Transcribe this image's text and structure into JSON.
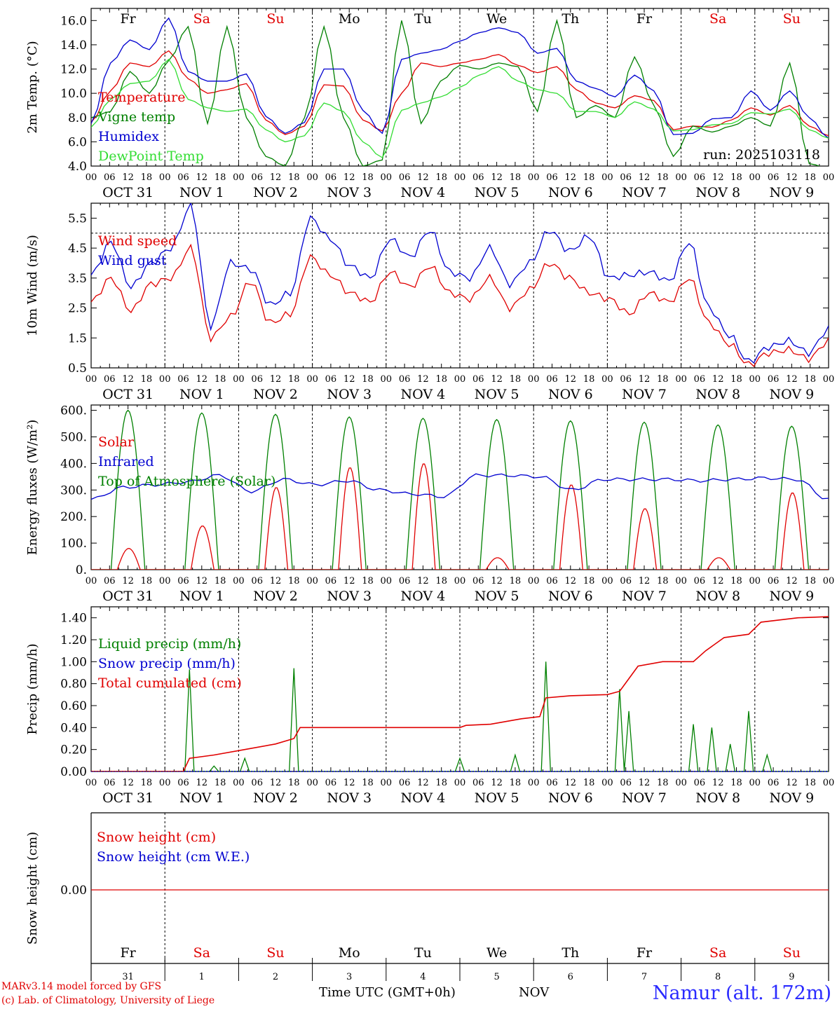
{
  "run_label": "run: 2025103118",
  "hour_ticks": [
    "00",
    "06",
    "12",
    "18"
  ],
  "date_labels": [
    "OCT 31",
    "NOV  1",
    "NOV  2",
    "NOV  3",
    "NOV  4",
    "NOV  5",
    "NOV  6",
    "NOV  7",
    "NOV  8",
    "NOV  9"
  ],
  "weekdays": [
    {
      "label": "Fr",
      "weekend": false
    },
    {
      "label": "Sa",
      "weekend": true
    },
    {
      "label": "Su",
      "weekend": true
    },
    {
      "label": "Mo",
      "weekend": false
    },
    {
      "label": "Tu",
      "weekend": false
    },
    {
      "label": "We",
      "weekend": false
    },
    {
      "label": "Th",
      "weekend": false
    },
    {
      "label": "Fr",
      "weekend": false
    },
    {
      "label": "Sa",
      "weekend": true
    },
    {
      "label": "Su",
      "weekend": true
    }
  ],
  "day_numbers": [
    "31",
    "1",
    "2",
    "3",
    "4",
    "5",
    "6",
    "7",
    "8",
    "9"
  ],
  "colors": {
    "red": "#e00000",
    "blue": "#0000d0",
    "green": "#008000",
    "lightgreen": "#33dd33",
    "weekend": "#e00000"
  },
  "chart_data": [
    {
      "type": "line",
      "ylabel": "2m Temp. (°C)",
      "ylim": [
        4,
        17
      ],
      "yticks": [
        "4.0",
        "6.0",
        "8.0",
        "10.0",
        "12.0",
        "14.0",
        "16.0"
      ],
      "x_hours_step": 12,
      "series": [
        {
          "name": "Temperature",
          "color": "red",
          "values": [
            7.6,
            10.2,
            12.5,
            12.2,
            13.5,
            11.2,
            10.0,
            10.3,
            10.8,
            7.8,
            6.6,
            7.3,
            10.7,
            10.6,
            7.8,
            6.9,
            10.0,
            12.5,
            12.2,
            12.5,
            12.8,
            13.2,
            12.3,
            11.7,
            12.2,
            10.3,
            9.2,
            8.8,
            9.8,
            9.4,
            7.0,
            7.3,
            7.2,
            7.8,
            8.8,
            8.2,
            9.0,
            7.3,
            6.5
          ]
        },
        {
          "name": "Vigne temp",
          "color": "green",
          "values": [
            8.0,
            8.5,
            11.8,
            10.0,
            12.7,
            15.5,
            7.5,
            15.5,
            8.0,
            4.8,
            4.0,
            8.0,
            15.5,
            8.0,
            4.0,
            4.5,
            16.0,
            7.5,
            11.0,
            12.3,
            12.0,
            12.5,
            12.2,
            8.5,
            16.0,
            8.0,
            9.0,
            8.0,
            13.0,
            9.0,
            4.8,
            7.3,
            6.8,
            7.3,
            8.0,
            7.3,
            12.5,
            4.2,
            3.8
          ]
        },
        {
          "name": "Humidex",
          "color": "blue",
          "values": [
            7.5,
            12.5,
            14.4,
            13.6,
            16.2,
            11.8,
            11.0,
            11.0,
            11.6,
            8.1,
            6.7,
            7.6,
            12.0,
            12.0,
            8.6,
            6.7,
            12.8,
            13.3,
            13.6,
            14.3,
            15.0,
            15.4,
            15.0,
            13.3,
            13.7,
            11.0,
            10.4,
            9.7,
            11.5,
            10.2,
            6.6,
            6.7,
            7.9,
            8.0,
            10.2,
            8.6,
            10.2,
            8.0,
            6.3
          ]
        },
        {
          "name": "DewPoint Temp",
          "color": "lightgreen",
          "values": [
            7.2,
            9.5,
            10.8,
            11.0,
            12.8,
            9.5,
            8.8,
            8.5,
            8.7,
            7.0,
            6.0,
            6.5,
            9.2,
            8.5,
            6.0,
            4.7,
            8.6,
            9.2,
            9.7,
            10.5,
            11.5,
            12.2,
            11.0,
            10.3,
            10.0,
            8.5,
            8.5,
            8.0,
            9.3,
            8.7,
            6.9,
            7.0,
            7.4,
            7.5,
            8.4,
            8.3,
            8.7,
            7.0,
            6.3
          ]
        }
      ]
    },
    {
      "type": "line",
      "ylabel": "10m Wind (m/s)",
      "ylim": [
        0.5,
        6.0
      ],
      "yticks": [
        "0.5",
        "1.5",
        "2.5",
        "3.5",
        "4.5",
        "5.5"
      ],
      "reference_line": 5.0,
      "x_hours_step": 12,
      "series": [
        {
          "name": "Wind speed",
          "color": "red",
          "values": [
            2.7,
            3.5,
            2.4,
            3.3,
            3.5,
            4.5,
            1.5,
            2.2,
            3.4,
            2.0,
            2.3,
            4.2,
            3.6,
            3.0,
            2.7,
            3.7,
            3.2,
            3.9,
            3.0,
            2.8,
            3.5,
            2.5,
            3.1,
            4.0,
            3.5,
            3.0,
            2.8,
            2.3,
            3.0,
            2.7,
            3.5,
            2.0,
            1.3,
            0.6,
            1.0,
            1.1,
            0.8,
            1.4
          ]
        },
        {
          "name": "Wind gust",
          "color": "blue",
          "values": [
            3.6,
            4.7,
            3.2,
            4.0,
            4.5,
            5.9,
            1.9,
            4.0,
            3.8,
            2.6,
            3.0,
            5.5,
            4.8,
            3.9,
            3.5,
            4.8,
            4.2,
            5.1,
            3.7,
            3.5,
            4.5,
            3.3,
            4.0,
            5.1,
            4.4,
            4.9,
            3.5,
            3.6,
            3.7,
            3.4,
            4.7,
            2.5,
            1.6,
            0.7,
            1.2,
            1.4,
            1.0,
            1.8
          ]
        }
      ]
    },
    {
      "type": "line",
      "ylabel": "Energy fluxes (W/m²)",
      "ylim": [
        0,
        620
      ],
      "yticks": [
        "0.",
        "100.",
        "200.",
        "300.",
        "400.",
        "500.",
        "600."
      ],
      "series": [
        {
          "name": "Solar",
          "color": "red",
          "day_peaks": [
            80,
            165,
            310,
            385,
            400,
            45,
            320,
            230,
            45,
            290
          ]
        },
        {
          "name": "Infrared",
          "color": "blue",
          "values": [
            265,
            310,
            320,
            330,
            355,
            295,
            340,
            320,
            335,
            300,
            285,
            275,
            355,
            355,
            350,
            300,
            340,
            340,
            340,
            335,
            340,
            345,
            340,
            265
          ]
        },
        {
          "name": "Top of Atmosphere (Solar)",
          "color": "green",
          "day_peaks": [
            600,
            590,
            585,
            575,
            570,
            565,
            560,
            555,
            545,
            540
          ]
        }
      ]
    },
    {
      "type": "line",
      "ylabel": "Precip (mm/h)",
      "ylim": [
        0,
        1.5
      ],
      "yticks": [
        "0.00",
        "0.20",
        "0.40",
        "0.60",
        "0.80",
        "1.00",
        "1.20",
        "1.40"
      ],
      "series": [
        {
          "name": "Liquid precip (mm/h)",
          "color": "green",
          "spikes": [
            [
              32,
              0.93
            ],
            [
              40,
              0.05
            ],
            [
              50,
              0.12
            ],
            [
              66,
              0.94
            ],
            [
              120,
              0.12
            ],
            [
              138,
              0.15
            ],
            [
              148,
              1.0
            ],
            [
              172,
              0.75
            ],
            [
              175,
              0.55
            ],
            [
              196,
              0.43
            ],
            [
              202,
              0.4
            ],
            [
              208,
              0.25
            ],
            [
              214,
              0.55
            ],
            [
              220,
              0.15
            ]
          ]
        },
        {
          "name": "Snow precip (mm/h)",
          "color": "blue",
          "values": [
            0
          ]
        },
        {
          "name": "Total cumulated (cm)",
          "color": "red",
          "points": [
            [
              0,
              0
            ],
            [
              30,
              0
            ],
            [
              32,
              0.12
            ],
            [
              40,
              0.15
            ],
            [
              50,
              0.2
            ],
            [
              60,
              0.25
            ],
            [
              66,
              0.3
            ],
            [
              68,
              0.4
            ],
            [
              120,
              0.4
            ],
            [
              122,
              0.42
            ],
            [
              130,
              0.43
            ],
            [
              140,
              0.48
            ],
            [
              146,
              0.5
            ],
            [
              148,
              0.67
            ],
            [
              156,
              0.69
            ],
            [
              168,
              0.7
            ],
            [
              172,
              0.73
            ],
            [
              178,
              0.96
            ],
            [
              186,
              1.0
            ],
            [
              196,
              1.0
            ],
            [
              200,
              1.1
            ],
            [
              206,
              1.22
            ],
            [
              214,
              1.25
            ],
            [
              218,
              1.36
            ],
            [
              230,
              1.4
            ],
            [
              240,
              1.41
            ]
          ]
        }
      ]
    },
    {
      "type": "line",
      "ylabel": "Snow height (cm)",
      "ylim": [
        -1,
        1
      ],
      "yticks": [
        "0.00"
      ],
      "series": [
        {
          "name": "Snow height (cm)",
          "color": "red",
          "values": [
            0,
            0
          ]
        },
        {
          "name": "Snow height (cm W.E.)",
          "color": "blue",
          "values": [
            0,
            0
          ]
        }
      ]
    }
  ],
  "footer": {
    "model_line": "MARv3.14 model forced by GFS",
    "lab_line": "(c) Lab. of Climatology, University of Liege",
    "xaxis_title": "Time UTC (GMT+0h)",
    "month": "NOV",
    "station": "Namur (alt. 172m)"
  }
}
